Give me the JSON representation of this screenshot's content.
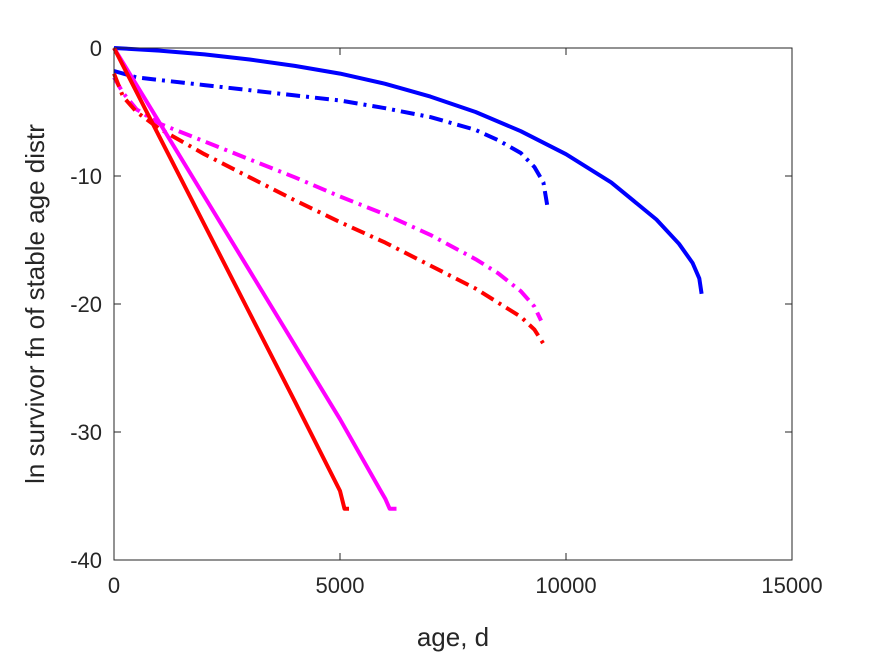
{
  "chart_data": {
    "type": "line",
    "title": "",
    "xlabel": "age, d",
    "ylabel": "ln survivor fn of stable age distr",
    "xlim": [
      0,
      15000
    ],
    "ylim": [
      -40,
      0
    ],
    "xticks": [
      0,
      5000,
      10000,
      15000
    ],
    "yticks": [
      -40,
      -30,
      -20,
      -10,
      0
    ],
    "xtick_labels": [
      "0",
      "5000",
      "10000",
      "15000"
    ],
    "ytick_labels": [
      "-40",
      "-30",
      "-20",
      "-10",
      "0"
    ],
    "grid": false,
    "legend": "none",
    "series": [
      {
        "color": "#0000ff",
        "style": "solid",
        "x": [
          0,
          1000,
          2000,
          3000,
          4000,
          5000,
          6000,
          7000,
          8000,
          9000,
          10000,
          11000,
          12000,
          12500,
          12800,
          12950,
          13000
        ],
        "y": [
          0,
          -0.2,
          -0.5,
          -0.9,
          -1.4,
          -2.0,
          -2.8,
          -3.8,
          -5.0,
          -6.5,
          -8.3,
          -10.5,
          -13.4,
          -15.3,
          -16.8,
          -18.0,
          -19.2
        ]
      },
      {
        "color": "#0000ff",
        "style": "dashdot",
        "x": [
          0,
          500,
          1000,
          2000,
          3000,
          4000,
          5000,
          6000,
          7000,
          8000,
          8500,
          9000,
          9300,
          9500,
          9600
        ],
        "y": [
          -1.8,
          -2.3,
          -2.5,
          -2.9,
          -3.3,
          -3.7,
          -4.1,
          -4.7,
          -5.4,
          -6.4,
          -7.2,
          -8.2,
          -9.3,
          -10.5,
          -12.6
        ]
      },
      {
        "color": "#ff00ff",
        "style": "dashdot",
        "x": [
          0,
          200,
          500,
          1000,
          2000,
          3000,
          4000,
          5000,
          6000,
          7000,
          8000,
          8500,
          9000,
          9300,
          9450
        ],
        "y": [
          -2.3,
          -3.5,
          -4.8,
          -5.9,
          -7.3,
          -8.7,
          -10.1,
          -11.6,
          -13.0,
          -14.6,
          -16.5,
          -17.6,
          -19.0,
          -20.2,
          -21.3
        ]
      },
      {
        "color": "#ff0000",
        "style": "dashdot",
        "x": [
          0,
          200,
          500,
          1000,
          2000,
          3000,
          4000,
          5000,
          6000,
          7000,
          8000,
          8500,
          9000,
          9300,
          9500
        ],
        "y": [
          -2.0,
          -3.8,
          -5.0,
          -6.3,
          -8.3,
          -10.1,
          -11.9,
          -13.6,
          -15.2,
          -17.0,
          -18.8,
          -19.9,
          -21.0,
          -22.0,
          -23.1
        ]
      },
      {
        "color": "#ff00ff",
        "style": "solid",
        "x": [
          0,
          1000,
          2000,
          3000,
          4000,
          5000,
          5900,
          6000,
          6100,
          6250
        ],
        "y": [
          0,
          -5.8,
          -11.6,
          -17.4,
          -23.2,
          -29.0,
          -34.6,
          -35.2,
          -36.0,
          -36.0
        ]
      },
      {
        "color": "#ff0000",
        "style": "solid",
        "x": [
          0,
          1000,
          2000,
          3000,
          4000,
          5000,
          5100,
          5200
        ],
        "y": [
          0,
          -6.9,
          -13.8,
          -20.7,
          -27.6,
          -34.6,
          -36.0,
          -36.0
        ]
      }
    ]
  }
}
